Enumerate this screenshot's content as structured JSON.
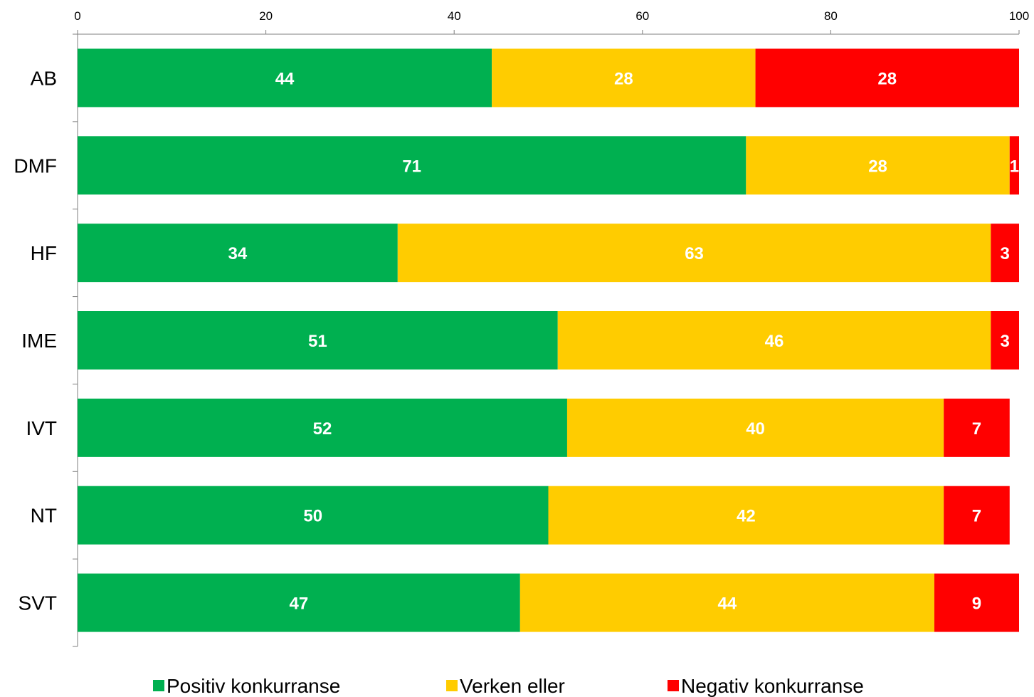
{
  "chart_data": {
    "type": "bar",
    "orientation": "horizontal",
    "stacked": true,
    "categories": [
      "AB",
      "DMF",
      "HF",
      "IME",
      "IVT",
      "NT",
      "SVT"
    ],
    "series": [
      {
        "name": "Positiv konkurranse",
        "color": "#00B050",
        "values": [
          44,
          71,
          34,
          51,
          52,
          50,
          47
        ]
      },
      {
        "name": "Verken eller",
        "color": "#FFCC00",
        "values": [
          28,
          28,
          63,
          46,
          40,
          42,
          44
        ]
      },
      {
        "name": "Negativ konkurranse",
        "color": "#FF0000",
        "values": [
          28,
          1,
          3,
          3,
          7,
          7,
          9
        ]
      }
    ],
    "xlim": [
      0,
      100
    ],
    "xticks": [
      "0",
      "20",
      "40",
      "60",
      "80",
      "100"
    ],
    "x_axis_position": "top",
    "grid": false,
    "legend": "bottom",
    "data_labels": true
  }
}
